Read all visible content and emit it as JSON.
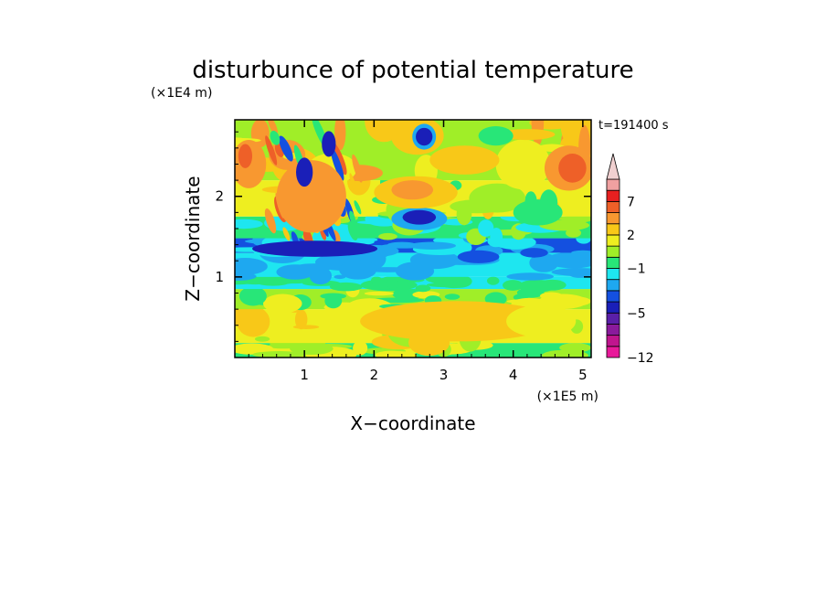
{
  "chart_data": {
    "type": "heatmap",
    "title": "disturbunce of potential temperature",
    "time_label": "t=191400 s",
    "xlabel": "X−coordinate",
    "ylabel": "Z−coordinate",
    "x_scale_label": "(×1E5 m)",
    "y_scale_label": "(×1E4 m)",
    "xlim": [
      0,
      5.12
    ],
    "ylim": [
      0,
      2.95
    ],
    "x_ticks": [
      "1",
      "2",
      "3",
      "4",
      "5"
    ],
    "y_ticks": [
      "1",
      "2"
    ],
    "colorbar": {
      "tick_labels": [
        "7",
        "2",
        "−1",
        "−5",
        "−12"
      ],
      "levels": [
        -12,
        -10,
        -8,
        -6,
        -5,
        -4,
        -3,
        -2,
        -1,
        0,
        1,
        2,
        3,
        5,
        7,
        9,
        11
      ],
      "colors": [
        "#e8199a",
        "#c0158e",
        "#8a1a9c",
        "#5a1fa8",
        "#1a1fb8",
        "#1450e0",
        "#1ea8f0",
        "#1ee6f0",
        "#28e678",
        "#a0ee28",
        "#eeee20",
        "#f8c818",
        "#f89830",
        "#ee6028",
        "#e62020",
        "#f0a0a0"
      ],
      "extend_top": true
    },
    "bands": [
      {
        "z": [
          0.0,
          0.18
        ],
        "colors": [
          "#28e678",
          "#eeee20",
          "#a0ee28"
        ]
      },
      {
        "z": [
          0.18,
          0.6
        ],
        "colors": [
          "#eeee20",
          "#f8c818",
          "#a0ee28"
        ]
      },
      {
        "z": [
          0.6,
          0.85
        ],
        "colors": [
          "#a0ee28",
          "#28e678",
          "#eeee20"
        ]
      },
      {
        "z": [
          0.85,
          1.0
        ],
        "colors": [
          "#1ee6f0",
          "#28e678"
        ]
      },
      {
        "z": [
          1.0,
          1.3
        ],
        "colors": [
          "#1ee6f0",
          "#1ea8f0"
        ]
      },
      {
        "z": [
          1.3,
          1.48
        ],
        "colors": [
          "#1450e0",
          "#1ea8f0",
          "#1ee6f0"
        ]
      },
      {
        "z": [
          1.48,
          1.75
        ],
        "colors": [
          "#28e678",
          "#1ee6f0",
          "#a0ee28"
        ]
      },
      {
        "z": [
          1.75,
          2.2
        ],
        "colors": [
          "#eeee20",
          "#f8c818",
          "#a0ee28",
          "#28e678"
        ]
      },
      {
        "z": [
          2.2,
          2.95
        ],
        "colors": [
          "#a0ee28",
          "#eeee20",
          "#f8c818",
          "#f89830"
        ]
      }
    ],
    "blobs": [
      {
        "x": 2.72,
        "z": 2.74,
        "rx": 0.17,
        "rz": 0.16,
        "color": "#1ea8f0"
      },
      {
        "x": 2.72,
        "z": 2.74,
        "rx": 0.12,
        "rz": 0.11,
        "color": "#1a1fb8"
      },
      {
        "x": 2.65,
        "z": 1.72,
        "rx": 0.4,
        "rz": 0.14,
        "color": "#1ea8f0"
      },
      {
        "x": 2.65,
        "z": 1.74,
        "rx": 0.24,
        "rz": 0.09,
        "color": "#1a1fb8"
      },
      {
        "x": 2.6,
        "z": 2.05,
        "rx": 0.6,
        "rz": 0.2,
        "color": "#f8c818"
      },
      {
        "x": 2.55,
        "z": 2.08,
        "rx": 0.3,
        "rz": 0.12,
        "color": "#f89830"
      },
      {
        "x": 3.3,
        "z": 2.45,
        "rx": 0.5,
        "rz": 0.18,
        "color": "#f8c818"
      },
      {
        "x": 4.8,
        "z": 2.35,
        "rx": 0.35,
        "rz": 0.28,
        "color": "#f89830"
      },
      {
        "x": 4.85,
        "z": 2.35,
        "rx": 0.2,
        "rz": 0.18,
        "color": "#ee6028"
      },
      {
        "x": 0.2,
        "z": 2.4,
        "rx": 0.25,
        "rz": 0.3,
        "color": "#f89830"
      },
      {
        "x": 0.15,
        "z": 2.5,
        "rx": 0.1,
        "rz": 0.15,
        "color": "#ee6028"
      },
      {
        "x": 1.1,
        "z": 2.0,
        "rx": 0.5,
        "rz": 0.45,
        "color": "#f89830"
      },
      {
        "x": 1.0,
        "z": 2.3,
        "rx": 0.12,
        "rz": 0.18,
        "color": "#1a1fb8"
      },
      {
        "x": 1.35,
        "z": 2.65,
        "rx": 0.1,
        "rz": 0.16,
        "color": "#1a1fb8"
      },
      {
        "x": 1.15,
        "z": 1.35,
        "rx": 0.9,
        "rz": 0.1,
        "color": "#1a1fb8"
      },
      {
        "x": 3.5,
        "z": 1.25,
        "rx": 0.3,
        "rz": 0.08,
        "color": "#1450e0"
      },
      {
        "x": 4.3,
        "z": 1.3,
        "rx": 0.2,
        "rz": 0.06,
        "color": "#1450e0"
      },
      {
        "x": 3.75,
        "z": 2.75,
        "rx": 0.25,
        "rz": 0.12,
        "color": "#28e678"
      },
      {
        "x": 3.2,
        "z": 0.45,
        "rx": 1.4,
        "rz": 0.25,
        "color": "#f8c818"
      },
      {
        "x": 4.4,
        "z": 0.45,
        "rx": 0.5,
        "rz": 0.2,
        "color": "#eeee20"
      }
    ]
  }
}
